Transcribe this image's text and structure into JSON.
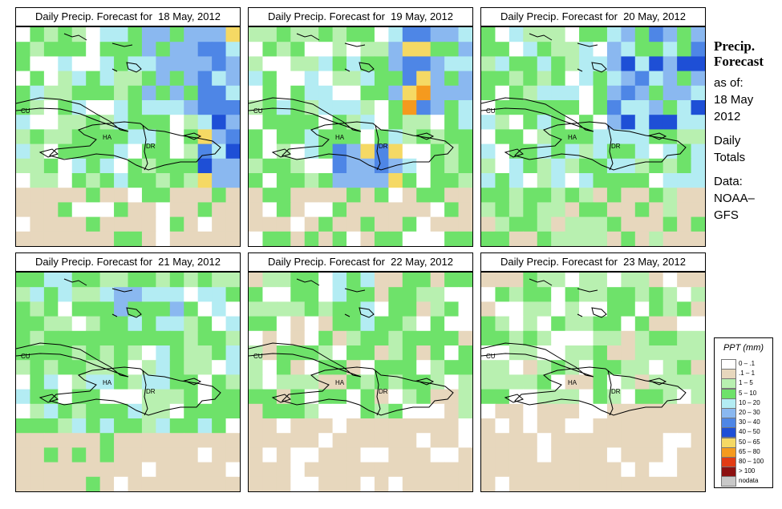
{
  "panels": [
    {
      "title": "Daily Precip. Forecast for  18 May, 2012"
    },
    {
      "title": "Daily Precip. Forecast for  19 May, 2012"
    },
    {
      "title": "Daily Precip. Forecast for  20 May, 2012"
    },
    {
      "title": "Daily Precip. Forecast for  21 May, 2012"
    },
    {
      "title": "Daily Precip. Forecast for  22 May, 2012"
    },
    {
      "title": "Daily Precip. Forecast for  23 May, 2012"
    }
  ],
  "map_labels": {
    "cuba": "CU",
    "haiti": "HA",
    "dominican_republic": "DR"
  },
  "side_text": {
    "title_line1": "Precip.",
    "title_line2": "Forecast",
    "asof_line1": "as of:",
    "asof_line2": "18 May",
    "asof_line3": "2012",
    "totals_line1": "Daily",
    "totals_line2": "Totals",
    "data_line1": "Data:",
    "data_line2": "NOAA–",
    "data_line3": "GFS"
  },
  "legend": {
    "title": "PPT (mm)",
    "items": [
      {
        "label": "0 – .1",
        "color": "#ffffff"
      },
      {
        "label": ".1 – 1",
        "color": "#e7d7bd"
      },
      {
        "label": "1 – 5",
        "color": "#b8f0b0"
      },
      {
        "label": "5 – 10",
        "color": "#6ee26a"
      },
      {
        "label": "10 – 20",
        "color": "#b3ecf3"
      },
      {
        "label": "20 – 30",
        "color": "#8ab8f0"
      },
      {
        "label": "30 – 40",
        "color": "#4e86e6"
      },
      {
        "label": "40 – 50",
        "color": "#1e4fd6"
      },
      {
        "label": "50 – 65",
        "color": "#f5d964"
      },
      {
        "label": "65 – 80",
        "color": "#f59a1e"
      },
      {
        "label": "80 – 100",
        "color": "#e23b14"
      },
      {
        "label": "> 100",
        "color": "#8c1010"
      },
      {
        "label": "nodata",
        "color": "#c8c8c8"
      }
    ]
  }
}
